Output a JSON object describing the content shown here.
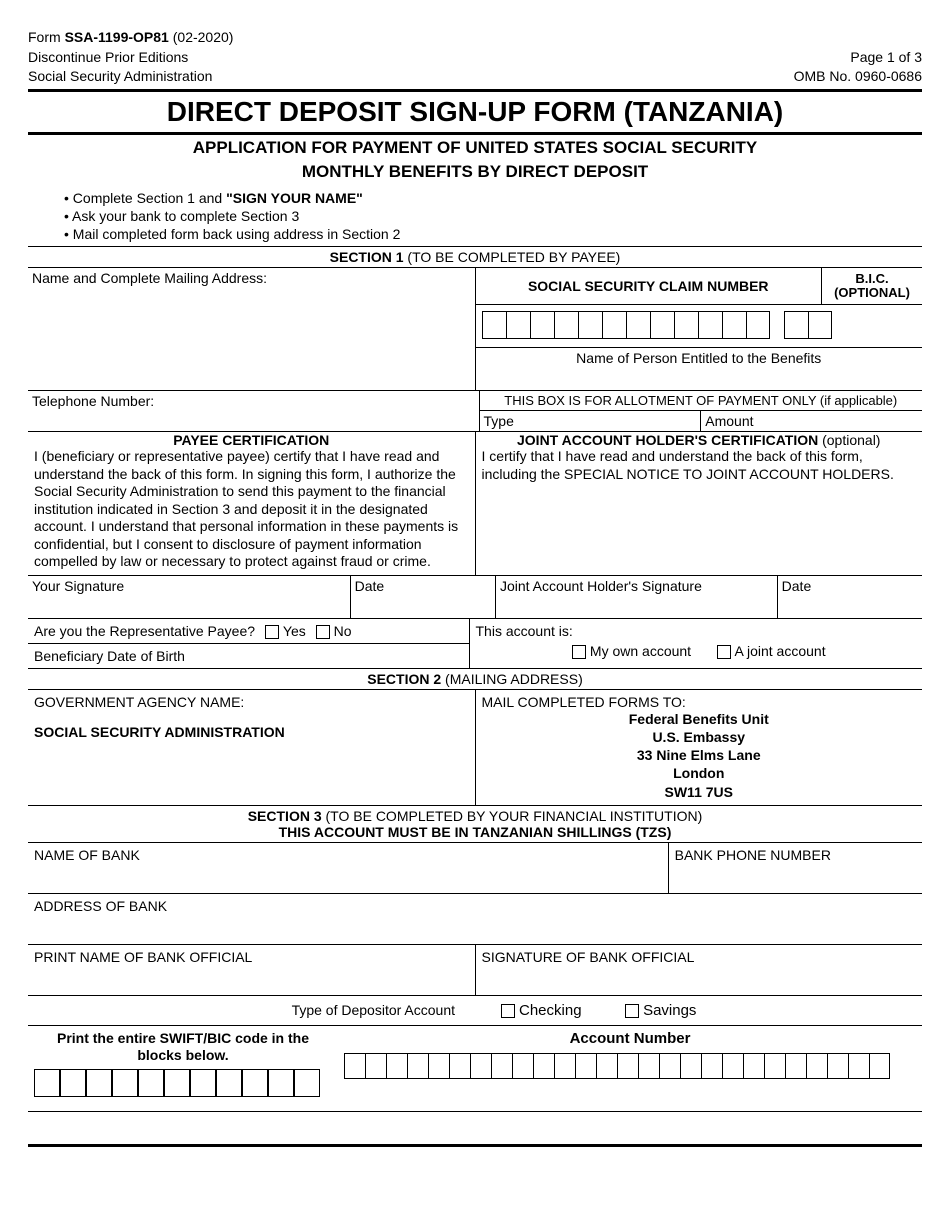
{
  "header": {
    "form_line": "Form ",
    "form_number": "SSA-1199-OP81",
    "form_date": " (02-2020)",
    "discontinue": "Discontinue Prior Editions",
    "agency": "Social Security Administration",
    "page": "Page 1 of 3",
    "omb": "OMB No. 0960-0686"
  },
  "title": "DIRECT DEPOSIT SIGN-UP FORM (TANZANIA)",
  "subtitle1": "APPLICATION FOR PAYMENT OF UNITED STATES SOCIAL SECURITY",
  "subtitle2": "MONTHLY BENEFITS BY DIRECT DEPOSIT",
  "instructions": {
    "i1a": "• Complete Section 1 and ",
    "i1b": "\"SIGN YOUR NAME\"",
    "i2": "• Ask your bank to complete Section 3",
    "i3": "• Mail completed form back using address in Section 2"
  },
  "section1": {
    "header_bold": "SECTION 1",
    "header_rest": " (TO BE COMPLETED BY PAYEE)",
    "name_address_label": "Name and Complete Mailing Address:",
    "ssn_claim": "SOCIAL SECURITY CLAIM NUMBER",
    "bic": "B.I.C. (OPTIONAL)",
    "entitled": "Name of Person Entitled to the Benefits",
    "telephone": "Telephone Number:",
    "allotment": "THIS BOX IS FOR ALLOTMENT OF PAYMENT ONLY (if applicable)",
    "type": "Type",
    "amount": "Amount",
    "payee_cert_title": "PAYEE CERTIFICATION",
    "payee_cert_text": "I (beneficiary or representative payee) certify that I have read and understand the back of this form. In signing this form, I authorize the Social Security Administration to send this payment to the financial institution indicated in Section 3 and deposit it in the designated account. I understand that personal information in these payments is confidential, but I consent to disclosure of payment information compelled by law or necessary to protect against fraud or crime.",
    "joint_cert_title": "JOINT ACCOUNT HOLDER'S CERTIFICATION",
    "joint_cert_opt": " (optional)",
    "joint_cert_text": "I certify that I have read and understand the back of this form, including the SPECIAL NOTICE TO JOINT ACCOUNT HOLDERS.",
    "your_sig": "Your Signature",
    "date": "Date",
    "joint_sig": "Joint Account Holder's Signature",
    "rep_payee_q": "Are you the Representative Payee?",
    "yes": "Yes",
    "no": "No",
    "dob": "Beneficiary Date of Birth",
    "this_account": "This account is:",
    "own_account": "My own account",
    "joint_account": "A joint account"
  },
  "section2": {
    "header_bold": "SECTION 2",
    "header_rest": " (MAILING ADDRESS)",
    "agency_name_label": "GOVERNMENT AGENCY NAME:",
    "agency_name": "SOCIAL SECURITY ADMINISTRATION",
    "mail_to": "MAIL COMPLETED FORMS TO:",
    "addr1": "Federal Benefits Unit",
    "addr2": "U.S. Embassy",
    "addr3": "33 Nine Elms Lane",
    "addr4": "London",
    "addr5": "SW11 7US"
  },
  "section3": {
    "header_bold": "SECTION 3",
    "header_rest": " (TO BE COMPLETED BY YOUR FINANCIAL INSTITUTION)",
    "header_line2": "THIS ACCOUNT MUST BE IN TANZANIAN SHILLINGS (TZS)",
    "bank_name": "NAME OF BANK",
    "bank_phone": "BANK PHONE NUMBER",
    "bank_addr": "ADDRESS OF BANK",
    "official_print": "PRINT NAME OF BANK OFFICIAL",
    "official_sig": "SIGNATURE OF BANK OFFICIAL",
    "depositor_type": "Type of Depositor Account",
    "checking": "Checking",
    "savings": "Savings",
    "swift_label": "Print the entire SWIFT/BIC code in the blocks below.",
    "account_number": "Account Number",
    "swift_box_count": 11,
    "acct_box_count": 26
  }
}
